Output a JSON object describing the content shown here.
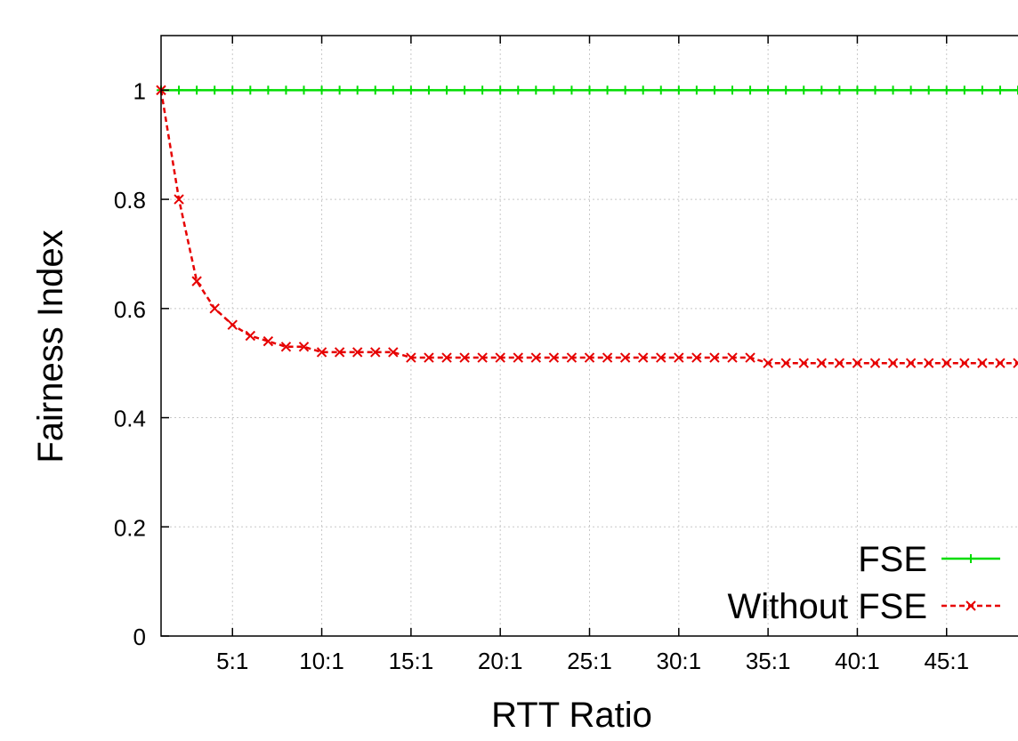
{
  "chart_data": {
    "type": "line",
    "xlabel": "RTT Ratio",
    "ylabel": "Fairness Index",
    "xlim": [
      1,
      49
    ],
    "ylim": [
      0,
      1.1
    ],
    "x_ticks": [
      {
        "value": 5,
        "label": "5:1"
      },
      {
        "value": 10,
        "label": "10:1"
      },
      {
        "value": 15,
        "label": "15:1"
      },
      {
        "value": 20,
        "label": "20:1"
      },
      {
        "value": 25,
        "label": "25:1"
      },
      {
        "value": 30,
        "label": "30:1"
      },
      {
        "value": 35,
        "label": "35:1"
      },
      {
        "value": 40,
        "label": "40:1"
      },
      {
        "value": 45,
        "label": "45:1"
      }
    ],
    "y_ticks": [
      {
        "value": 0,
        "label": "0"
      },
      {
        "value": 0.2,
        "label": "0.2"
      },
      {
        "value": 0.4,
        "label": "0.4"
      },
      {
        "value": 0.6,
        "label": "0.6"
      },
      {
        "value": 0.8,
        "label": "0.8"
      },
      {
        "value": 1,
        "label": "1"
      }
    ],
    "grid": true,
    "legend_position": "bottom-right",
    "series": [
      {
        "name": "FSE",
        "color": "#00dd00",
        "marker": "plus",
        "dash": "solid",
        "x": [
          1,
          2,
          3,
          4,
          5,
          6,
          7,
          8,
          9,
          10,
          11,
          12,
          13,
          14,
          15,
          16,
          17,
          18,
          19,
          20,
          21,
          22,
          23,
          24,
          25,
          26,
          27,
          28,
          29,
          30,
          31,
          32,
          33,
          34,
          35,
          36,
          37,
          38,
          39,
          40,
          41,
          42,
          43,
          44,
          45,
          46,
          47,
          48,
          49
        ],
        "values": [
          1,
          1,
          1,
          1,
          1,
          1,
          1,
          1,
          1,
          1,
          1,
          1,
          1,
          1,
          1,
          1,
          1,
          1,
          1,
          1,
          1,
          1,
          1,
          1,
          1,
          1,
          1,
          1,
          1,
          1,
          1,
          1,
          1,
          1,
          1,
          1,
          1,
          1,
          1,
          1,
          1,
          1,
          1,
          1,
          1,
          1,
          1,
          1,
          1
        ]
      },
      {
        "name": "Without FSE",
        "color": "#e60000",
        "marker": "cross",
        "dash": "dashed",
        "x": [
          1,
          2,
          3,
          4,
          5,
          6,
          7,
          8,
          9,
          10,
          11,
          12,
          13,
          14,
          15,
          16,
          17,
          18,
          19,
          20,
          21,
          22,
          23,
          24,
          25,
          26,
          27,
          28,
          29,
          30,
          31,
          32,
          33,
          34,
          35,
          36,
          37,
          38,
          39,
          40,
          41,
          42,
          43,
          44,
          45,
          46,
          47,
          48,
          49
        ],
        "values": [
          1,
          0.8,
          0.65,
          0.6,
          0.57,
          0.55,
          0.54,
          0.53,
          0.53,
          0.52,
          0.52,
          0.52,
          0.52,
          0.52,
          0.51,
          0.51,
          0.51,
          0.51,
          0.51,
          0.51,
          0.51,
          0.51,
          0.51,
          0.51,
          0.51,
          0.51,
          0.51,
          0.51,
          0.51,
          0.51,
          0.51,
          0.51,
          0.51,
          0.51,
          0.5,
          0.5,
          0.5,
          0.5,
          0.5,
          0.5,
          0.5,
          0.5,
          0.5,
          0.5,
          0.5,
          0.5,
          0.5,
          0.5,
          0.5
        ]
      }
    ]
  }
}
